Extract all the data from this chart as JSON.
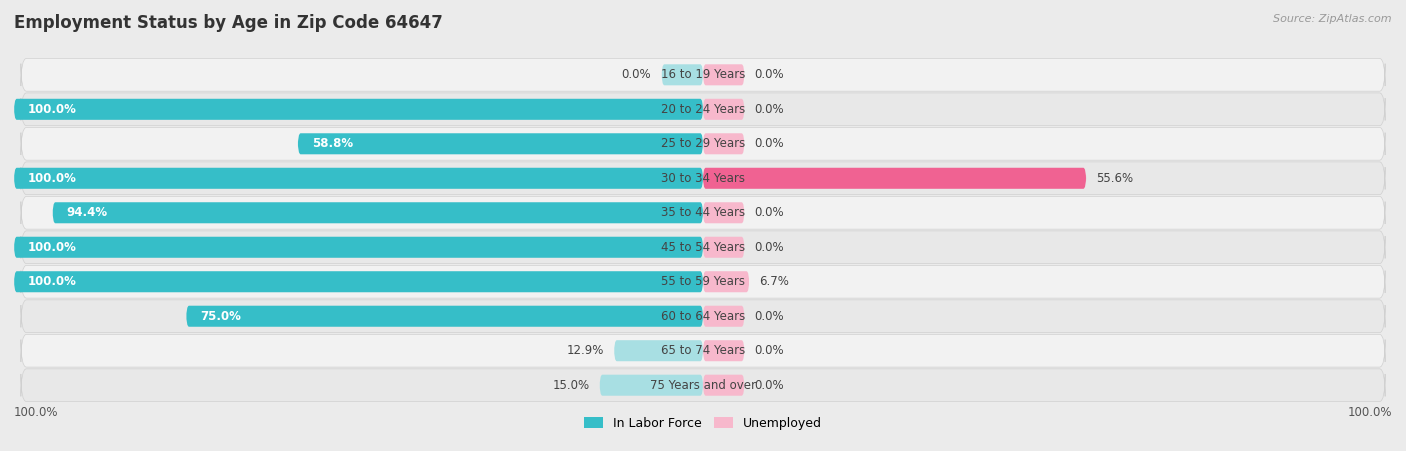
{
  "title": "Employment Status by Age in Zip Code 64647",
  "source": "Source: ZipAtlas.com",
  "age_groups": [
    "16 to 19 Years",
    "20 to 24 Years",
    "25 to 29 Years",
    "30 to 34 Years",
    "35 to 44 Years",
    "45 to 54 Years",
    "55 to 59 Years",
    "60 to 64 Years",
    "65 to 74 Years",
    "75 Years and over"
  ],
  "in_labor_force": [
    0.0,
    100.0,
    58.8,
    100.0,
    94.4,
    100.0,
    100.0,
    75.0,
    12.9,
    15.0
  ],
  "unemployed": [
    0.0,
    0.0,
    0.0,
    55.6,
    0.0,
    0.0,
    6.7,
    0.0,
    0.0,
    0.0
  ],
  "labor_force_color_full": "#36bec8",
  "labor_force_color_light": "#a8dfe3",
  "unemployed_color_full": "#f06292",
  "unemployed_color_light": "#f7b8cc",
  "bg_color": "#ebebeb",
  "bar_row_color_odd": "#f2f2f2",
  "bar_row_color_even": "#e8e8e8",
  "legend_labor": "In Labor Force",
  "legend_unemployed": "Unemployed",
  "x_min": -100.0,
  "x_max": 100.0,
  "label_fontsize": 8.5,
  "title_fontsize": 12,
  "source_fontsize": 8,
  "placeholder_un": 6.0,
  "placeholder_lf": 6.0
}
